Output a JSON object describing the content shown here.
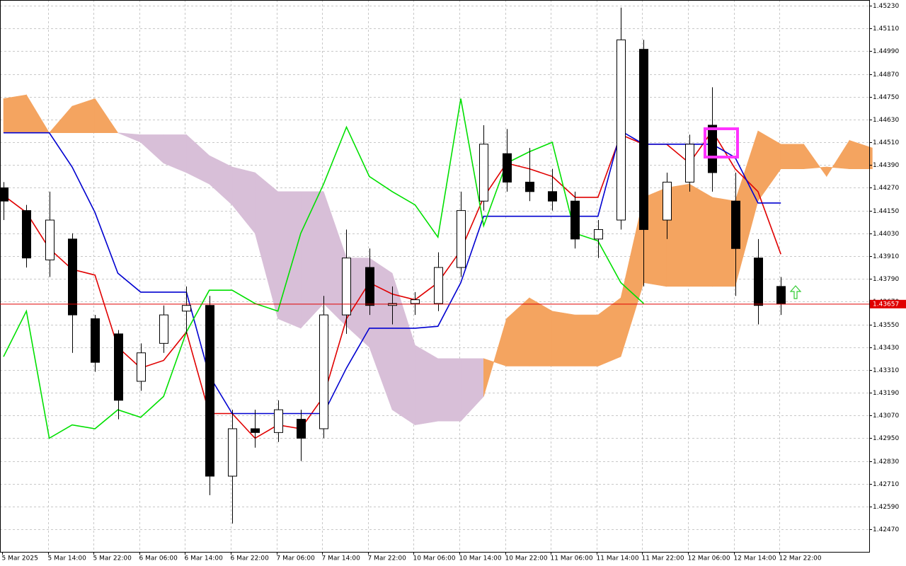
{
  "chart_data": {
    "type": "candlestick",
    "ylim": [
      1.42351,
      1.4526
    ],
    "grid": true,
    "yticks": [
      {
        "value": 1.4523,
        "label": "1.45230"
      },
      {
        "value": 1.4511,
        "label": "1.45110"
      },
      {
        "value": 1.4499,
        "label": "1.44990"
      },
      {
        "value": 1.4487,
        "label": "1.44870"
      },
      {
        "value": 1.4475,
        "label": "1.44750"
      },
      {
        "value": 1.4463,
        "label": "1.44630"
      },
      {
        "value": 1.4451,
        "label": "1.44510"
      },
      {
        "value": 1.4439,
        "label": "1.44390"
      },
      {
        "value": 1.4427,
        "label": "1.44270"
      },
      {
        "value": 1.4415,
        "label": "1.44150"
      },
      {
        "value": 1.4403,
        "label": "1.44030"
      },
      {
        "value": 1.4391,
        "label": "1.43910"
      },
      {
        "value": 1.4379,
        "label": "1.43790"
      },
      {
        "value": 1.4367,
        "label": "1.43670"
      },
      {
        "value": 1.4355,
        "label": "1.43550"
      },
      {
        "value": 1.4343,
        "label": "1.43430"
      },
      {
        "value": 1.4331,
        "label": "1.43310"
      },
      {
        "value": 1.4319,
        "label": "1.43190"
      },
      {
        "value": 1.4307,
        "label": "1.43070"
      },
      {
        "value": 1.4295,
        "label": "1.42950"
      },
      {
        "value": 1.4283,
        "label": "1.42830"
      },
      {
        "value": 1.4271,
        "label": "1.42710"
      },
      {
        "value": 1.4259,
        "label": "1.42590"
      },
      {
        "value": 1.4247,
        "label": "1.42470"
      }
    ],
    "x_labels": [
      "5 Mar 2025",
      "5 Mar 14:00",
      "5 Mar 22:00",
      "6 Mar 06:00",
      "6 Mar 14:00",
      "6 Mar 22:00",
      "7 Mar 06:00",
      "7 Mar 14:00",
      "7 Mar 22:00",
      "10 Mar 06:00",
      "10 Mar 14:00",
      "10 Mar 22:00",
      "11 Mar 06:00",
      "11 Mar 14:00",
      "11 Mar 22:00",
      "12 Mar 06:00",
      "12 Mar 14:00",
      "12 Mar 22:00"
    ],
    "last_price": 1.43657,
    "last_price_color": "#e00000",
    "candles": {
      "open": [
        1.4427,
        1.4415,
        1.4389,
        1.44,
        1.4358,
        1.435,
        1.4325,
        1.4345,
        1.4362,
        1.4365,
        1.4275,
        1.43,
        1.4298,
        1.4305,
        1.43,
        1.436,
        1.4385,
        1.4365,
        1.4366,
        1.4366,
        1.4385,
        1.442,
        1.4445,
        1.443,
        1.4425,
        1.442,
        1.44,
        1.441,
        1.45,
        1.441,
        1.443,
        1.446,
        1.442,
        1.439,
        1.4375
      ],
      "high": [
        1.443,
        1.4418,
        1.4425,
        1.4403,
        1.436,
        1.4352,
        1.4345,
        1.4365,
        1.4375,
        1.437,
        1.431,
        1.431,
        1.4315,
        1.431,
        1.437,
        1.4405,
        1.4395,
        1.4375,
        1.4372,
        1.4393,
        1.4425,
        1.446,
        1.4458,
        1.4448,
        1.4437,
        1.4425,
        1.441,
        1.4522,
        1.4505,
        1.4435,
        1.4455,
        1.448,
        1.4435,
        1.44,
        1.438
      ],
      "low": [
        1.441,
        1.4385,
        1.438,
        1.434,
        1.433,
        1.4305,
        1.432,
        1.434,
        1.435,
        1.4265,
        1.425,
        1.429,
        1.4293,
        1.4283,
        1.4295,
        1.435,
        1.436,
        1.4355,
        1.436,
        1.4362,
        1.438,
        1.4415,
        1.4425,
        1.442,
        1.4415,
        1.4395,
        1.439,
        1.4405,
        1.4375,
        1.44,
        1.4425,
        1.4425,
        1.437,
        1.4355,
        1.436
      ],
      "close": [
        1.442,
        1.439,
        1.441,
        1.436,
        1.4335,
        1.4315,
        1.434,
        1.436,
        1.4365,
        1.4275,
        1.43,
        1.4298,
        1.431,
        1.4295,
        1.436,
        1.439,
        1.4365,
        1.4366,
        1.4368,
        1.4385,
        1.4415,
        1.445,
        1.443,
        1.4425,
        1.442,
        1.44,
        1.4405,
        1.4505,
        1.4405,
        1.443,
        1.445,
        1.4435,
        1.4395,
        1.4365,
        1.4366
      ],
      "up_color": "#ffffff",
      "down_color": "#000000",
      "edge_color": "#000000"
    },
    "lines": [
      {
        "color": "#e00000",
        "values": [
          1.4423,
          1.4414,
          1.4395,
          1.4384,
          1.4381,
          1.4343,
          1.4332,
          1.4336,
          1.4351,
          1.4308,
          1.4308,
          1.4295,
          1.4302,
          1.43,
          1.4317,
          1.4358,
          1.4377,
          1.4371,
          1.4368,
          1.4377,
          1.4394,
          1.4422,
          1.444,
          1.4437,
          1.4433,
          1.4422,
          1.4422,
          1.4455,
          1.445,
          1.445,
          1.444,
          1.4457,
          1.4437,
          1.4425,
          1.4392
        ]
      },
      {
        "color": "#0000d0",
        "values": [
          1.4456,
          1.4456,
          1.4456,
          1.4438,
          1.4414,
          1.4382,
          1.4372,
          1.4372,
          1.4372,
          1.4328,
          1.4308,
          1.4308,
          1.4308,
          1.4308,
          1.4308,
          1.4332,
          1.4353,
          1.4353,
          1.4353,
          1.4354,
          1.4377,
          1.4412,
          1.4412,
          1.4412,
          1.4412,
          1.4412,
          1.4412,
          1.4457,
          1.445,
          1.445,
          1.445,
          1.445,
          1.4443,
          1.4419,
          1.4419
        ]
      },
      {
        "color": "#00e000",
        "values": [
          1.4338,
          1.4362,
          1.4295,
          1.4302,
          1.43,
          1.431,
          1.4306,
          1.4317,
          1.4351,
          1.4373,
          1.4373,
          1.4366,
          1.4362,
          1.4403,
          1.4429,
          1.4459,
          1.4433,
          1.4425,
          1.4418,
          1.4401,
          1.4474,
          1.4407,
          1.444,
          1.4446,
          1.4451,
          1.4403,
          1.4399,
          1.4377,
          1.4366,
          null,
          null,
          null,
          null,
          null,
          null
        ]
      }
    ],
    "cloud": {
      "bull_color": "#f4a460",
      "bear_color": "#d8bfd8",
      "span_a": [
        1.4474,
        1.4476,
        1.4456,
        1.447,
        1.4474,
        1.4456,
        1.4451,
        1.444,
        1.4435,
        1.4429,
        1.4418,
        1.4403,
        1.4358,
        1.4353,
        1.4366,
        1.4354,
        1.4343,
        1.431,
        1.4302,
        1.4304,
        1.4304,
        1.4317,
        1.4358,
        1.4369,
        1.4362,
        1.436,
        1.436,
        1.4369,
        1.4422,
        1.4427,
        1.4429,
        1.4422,
        1.442,
        1.4457,
        1.445,
        1.445,
        1.4433,
        1.4452,
        1.4448
      ],
      "span_b": [
        1.4456,
        1.4456,
        1.4456,
        1.4456,
        1.4456,
        1.4456,
        1.4455,
        1.4455,
        1.4455,
        1.4444,
        1.4438,
        1.4435,
        1.4425,
        1.4425,
        1.4425,
        1.439,
        1.439,
        1.4382,
        1.4344,
        1.4337,
        1.4337,
        1.4337,
        1.4333,
        1.4333,
        1.4333,
        1.4333,
        1.4333,
        1.4338,
        1.4377,
        1.4375,
        1.4375,
        1.4375,
        1.4375,
        1.442,
        1.4437,
        1.4437,
        1.4438,
        1.4437,
        1.4437
      ]
    }
  }
}
